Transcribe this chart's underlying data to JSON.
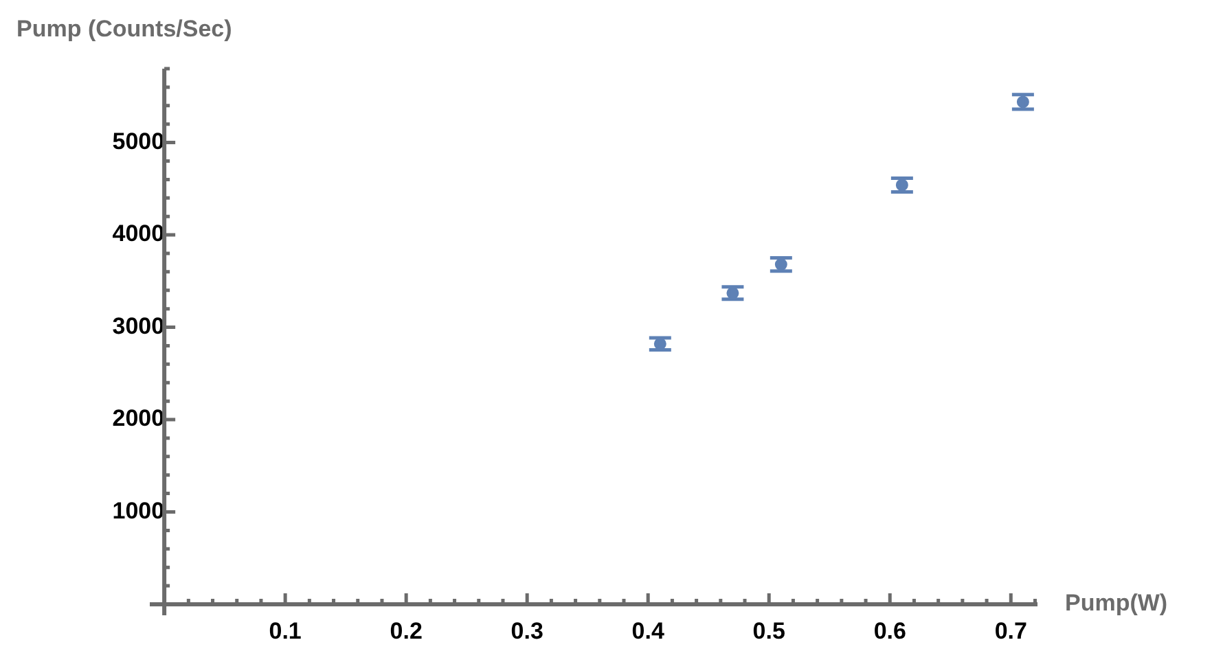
{
  "chart_data": {
    "type": "scatter",
    "xlabel": "Pump(W)",
    "ylabel": "Pump (Counts/Sec)",
    "x": [
      0.41,
      0.47,
      0.51,
      0.61,
      0.71
    ],
    "values": [
      2820,
      3370,
      3680,
      4540,
      5440
    ],
    "errors": [
      65,
      67,
      72,
      74,
      79
    ],
    "color": "#5e81b5",
    "marker": "circle",
    "xlim": [
      -0.012,
      0.722
    ],
    "xticks": [
      {
        "value": 0.02,
        "label": null
      },
      {
        "value": 0.04,
        "label": null
      },
      {
        "value": 0.06,
        "label": null
      },
      {
        "value": 0.08,
        "label": null
      },
      {
        "value": 0.1,
        "label": "0.1"
      },
      {
        "value": 0.12,
        "label": null
      },
      {
        "value": 0.14,
        "label": null
      },
      {
        "value": 0.16,
        "label": null
      },
      {
        "value": 0.18,
        "label": null
      },
      {
        "value": 0.2,
        "label": "0.2"
      },
      {
        "value": 0.22,
        "label": null
      },
      {
        "value": 0.24,
        "label": null
      },
      {
        "value": 0.26,
        "label": null
      },
      {
        "value": 0.28,
        "label": null
      },
      {
        "value": 0.3,
        "label": "0.3"
      },
      {
        "value": 0.32,
        "label": null
      },
      {
        "value": 0.34,
        "label": null
      },
      {
        "value": 0.36,
        "label": null
      },
      {
        "value": 0.38,
        "label": null
      },
      {
        "value": 0.4,
        "label": "0.4"
      },
      {
        "value": 0.42,
        "label": null
      },
      {
        "value": 0.44,
        "label": null
      },
      {
        "value": 0.46,
        "label": null
      },
      {
        "value": 0.48,
        "label": null
      },
      {
        "value": 0.5,
        "label": "0.5"
      },
      {
        "value": 0.52,
        "label": null
      },
      {
        "value": 0.54,
        "label": null
      },
      {
        "value": 0.56,
        "label": null
      },
      {
        "value": 0.58,
        "label": null
      },
      {
        "value": 0.6,
        "label": "0.6"
      },
      {
        "value": 0.62,
        "label": null
      },
      {
        "value": 0.64,
        "label": null
      },
      {
        "value": 0.66,
        "label": null
      },
      {
        "value": 0.68,
        "label": null
      },
      {
        "value": 0.7,
        "label": "0.7"
      },
      {
        "value": 0.72,
        "label": null
      }
    ],
    "ylim": [
      0,
      5800
    ],
    "yticks": [
      {
        "value": 200,
        "label": null
      },
      {
        "value": 400,
        "label": null
      },
      {
        "value": 600,
        "label": null
      },
      {
        "value": 800,
        "label": null
      },
      1000,
      {
        "value": 1200,
        "label": null
      },
      {
        "value": 1400,
        "label": null
      },
      {
        "value": 1600,
        "label": null
      },
      {
        "value": 1800,
        "label": null
      },
      2000,
      {
        "value": 2200,
        "label": null
      },
      {
        "value": 2400,
        "label": null
      },
      {
        "value": 2600,
        "label": null
      },
      {
        "value": 2800,
        "label": null
      },
      3000,
      {
        "value": 3200,
        "label": null
      },
      {
        "value": 3400,
        "label": null
      },
      {
        "value": 3600,
        "label": null
      },
      {
        "value": 3800,
        "label": null
      },
      4000,
      {
        "value": 4200,
        "label": null
      },
      {
        "value": 4400,
        "label": null
      },
      {
        "value": 4600,
        "label": null
      },
      {
        "value": 4800,
        "label": null
      },
      5000,
      {
        "value": 5200,
        "label": null
      },
      {
        "value": 5400,
        "label": null
      },
      {
        "value": 5600,
        "label": null
      },
      {
        "value": 5800,
        "label": null
      }
    ]
  }
}
